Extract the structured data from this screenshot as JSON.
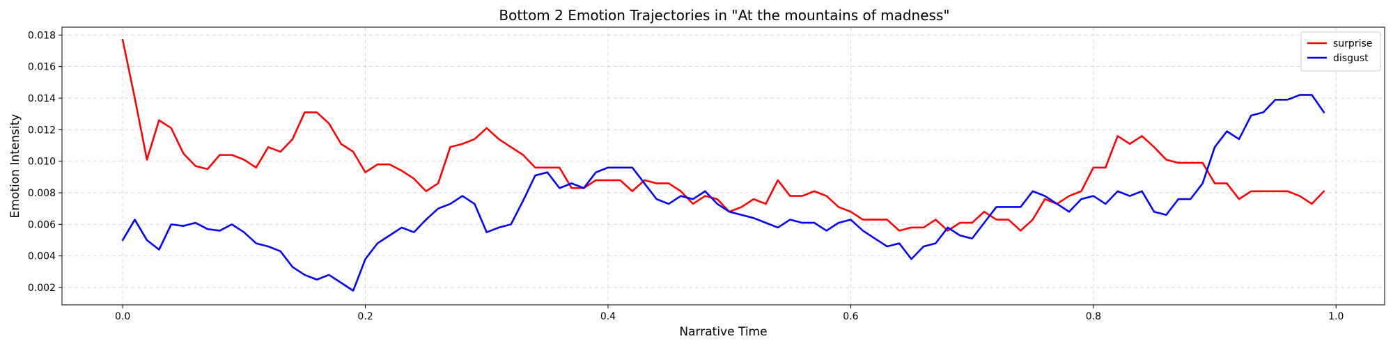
{
  "chart_data": {
    "type": "line",
    "title": "Bottom 2 Emotion Trajectories in \"At the mountains of madness\"",
    "xlabel": "Narrative Time",
    "ylabel": "Emotion Intensity",
    "xlim": [
      -0.05,
      1.04
    ],
    "ylim": [
      0.0009,
      0.0185
    ],
    "xticks": [
      0.0,
      0.2,
      0.4,
      0.6,
      0.8,
      1.0
    ],
    "xtick_labels": [
      "0.0",
      "0.2",
      "0.4",
      "0.6",
      "0.8",
      "1.0"
    ],
    "yticks": [
      0.002,
      0.004,
      0.006,
      0.008,
      0.01,
      0.012,
      0.014,
      0.016,
      0.018
    ],
    "ytick_labels": [
      "0.002",
      "0.004",
      "0.006",
      "0.008",
      "0.010",
      "0.012",
      "0.014",
      "0.016",
      "0.018"
    ],
    "grid": true,
    "legend_position": "top-right",
    "x_start": 0.0,
    "x_step": 0.01,
    "series": [
      {
        "name": "surprise",
        "color": "#ff0000",
        "values": [
          0.0177,
          0.014,
          0.0101,
          0.0126,
          0.0121,
          0.0105,
          0.0097,
          0.0095,
          0.0104,
          0.0104,
          0.0101,
          0.0096,
          0.0109,
          0.0106,
          0.0114,
          0.0131,
          0.0131,
          0.0124,
          0.0111,
          0.0106,
          0.0093,
          0.0098,
          0.0098,
          0.0094,
          0.0089,
          0.0081,
          0.0086,
          0.0109,
          0.0111,
          0.0114,
          0.0121,
          0.0114,
          0.0109,
          0.0104,
          0.0096,
          0.0096,
          0.0096,
          0.0083,
          0.0083,
          0.0088,
          0.0088,
          0.0088,
          0.0081,
          0.0088,
          0.0086,
          0.0086,
          0.0081,
          0.0073,
          0.0078,
          0.0076,
          0.0068,
          0.0071,
          0.0076,
          0.0073,
          0.0088,
          0.0078,
          0.0078,
          0.0081,
          0.0078,
          0.0071,
          0.0068,
          0.0063,
          0.0063,
          0.0063,
          0.0056,
          0.0058,
          0.0058,
          0.0063,
          0.0056,
          0.0061,
          0.0061,
          0.0068,
          0.0063,
          0.0063,
          0.0056,
          0.0063,
          0.0076,
          0.0073,
          0.0078,
          0.0081,
          0.0096,
          0.0096,
          0.0116,
          0.0111,
          0.0116,
          0.0109,
          0.0101,
          0.0099,
          0.0099,
          0.0099,
          0.0086,
          0.0086,
          0.0076,
          0.0081,
          0.0081,
          0.0081,
          0.0081,
          0.0078,
          0.0073,
          0.0081
        ]
      },
      {
        "name": "disgust",
        "color": "#0000ff",
        "values": [
          0.005,
          0.0063,
          0.005,
          0.0044,
          0.006,
          0.0059,
          0.0061,
          0.0057,
          0.0056,
          0.006,
          0.0055,
          0.0048,
          0.0046,
          0.0043,
          0.0033,
          0.0028,
          0.0025,
          0.0028,
          0.0023,
          0.0018,
          0.0038,
          0.0048,
          0.0053,
          0.0058,
          0.0055,
          0.0063,
          0.007,
          0.0073,
          0.0078,
          0.0073,
          0.0055,
          0.0058,
          0.006,
          0.0075,
          0.0091,
          0.0093,
          0.0083,
          0.0086,
          0.0083,
          0.0093,
          0.0096,
          0.0096,
          0.0096,
          0.0086,
          0.0076,
          0.0073,
          0.0078,
          0.0076,
          0.0081,
          0.0073,
          0.0068,
          0.0066,
          0.0064,
          0.0061,
          0.0058,
          0.0063,
          0.0061,
          0.0061,
          0.0056,
          0.0061,
          0.0063,
          0.0056,
          0.0051,
          0.0046,
          0.0048,
          0.0038,
          0.0046,
          0.0048,
          0.0058,
          0.0053,
          0.0051,
          0.0061,
          0.0071,
          0.0071,
          0.0071,
          0.0081,
          0.0078,
          0.0073,
          0.0068,
          0.0076,
          0.0078,
          0.0073,
          0.0081,
          0.0078,
          0.0081,
          0.0068,
          0.0066,
          0.0076,
          0.0076,
          0.0086,
          0.0109,
          0.0119,
          0.0114,
          0.0129,
          0.0131,
          0.0139,
          0.0139,
          0.0142,
          0.0142,
          0.0131
        ]
      }
    ]
  }
}
